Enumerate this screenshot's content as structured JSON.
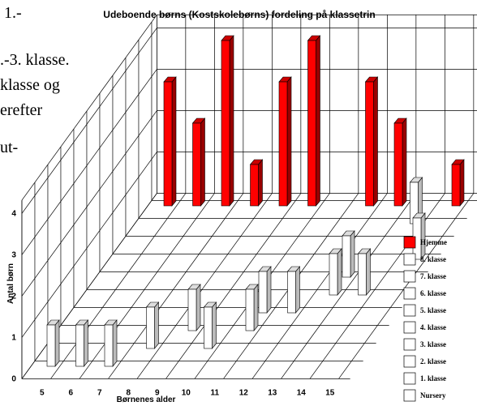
{
  "side_text": [
    "1.-",
    ".-3. klasse.",
    "klasse og",
    "erefter",
    "ut-"
  ],
  "chart_data": {
    "type": "bar3d",
    "title": "Udeboende børns (Kostskolebørns) fordeling på klassetrin",
    "x_label": "Børnenes alder",
    "y_label": "Antal børn",
    "categories": [
      "5",
      "6",
      "7",
      "8",
      "9",
      "10",
      "11",
      "12",
      "13",
      "14",
      "15"
    ],
    "ylim": [
      0,
      4
    ],
    "yticks": [
      0,
      1,
      2,
      3,
      4
    ],
    "series": [
      {
        "name": "Nursery",
        "color": "#ffffff",
        "values": [
          1,
          1,
          1,
          0,
          0,
          0,
          0,
          0,
          0,
          0,
          0
        ]
      },
      {
        "name": "1. klasse",
        "color": "#ffffff",
        "values": [
          0,
          0,
          0,
          1,
          0,
          1,
          0,
          0,
          0,
          0,
          0
        ]
      },
      {
        "name": "2. klasse",
        "color": "#ffffff",
        "values": [
          0,
          0,
          0,
          0,
          1,
          0,
          1,
          0,
          0,
          0,
          0
        ]
      },
      {
        "name": "3. klasse",
        "color": "#ffffff",
        "values": [
          0,
          0,
          0,
          0,
          0,
          0,
          1,
          1,
          0,
          0,
          0
        ]
      },
      {
        "name": "4. klasse",
        "color": "#ffffff",
        "values": [
          0,
          0,
          0,
          0,
          0,
          0,
          0,
          0,
          1,
          1,
          0
        ]
      },
      {
        "name": "5. klasse",
        "color": "#ffffff",
        "values": [
          0,
          0,
          0,
          0,
          0,
          0,
          0,
          0,
          1,
          0,
          0
        ]
      },
      {
        "name": "6. klasse",
        "color": "#ffffff",
        "values": [
          0,
          0,
          0,
          0,
          0,
          0,
          0,
          0,
          0,
          0,
          1
        ]
      },
      {
        "name": "7. klasse",
        "color": "#ffffff",
        "values": [
          0,
          0,
          0,
          0,
          0,
          0,
          0,
          0,
          0,
          0,
          0
        ]
      },
      {
        "name": "8. klasse",
        "color": "#ffffff",
        "values": [
          0,
          0,
          0,
          0,
          0,
          0,
          0,
          0,
          0,
          1,
          0
        ]
      },
      {
        "name": "Hjemme",
        "color": "#ff0000",
        "values": [
          3,
          2,
          4,
          1,
          3,
          4,
          0,
          3,
          2,
          0,
          1
        ]
      }
    ]
  }
}
